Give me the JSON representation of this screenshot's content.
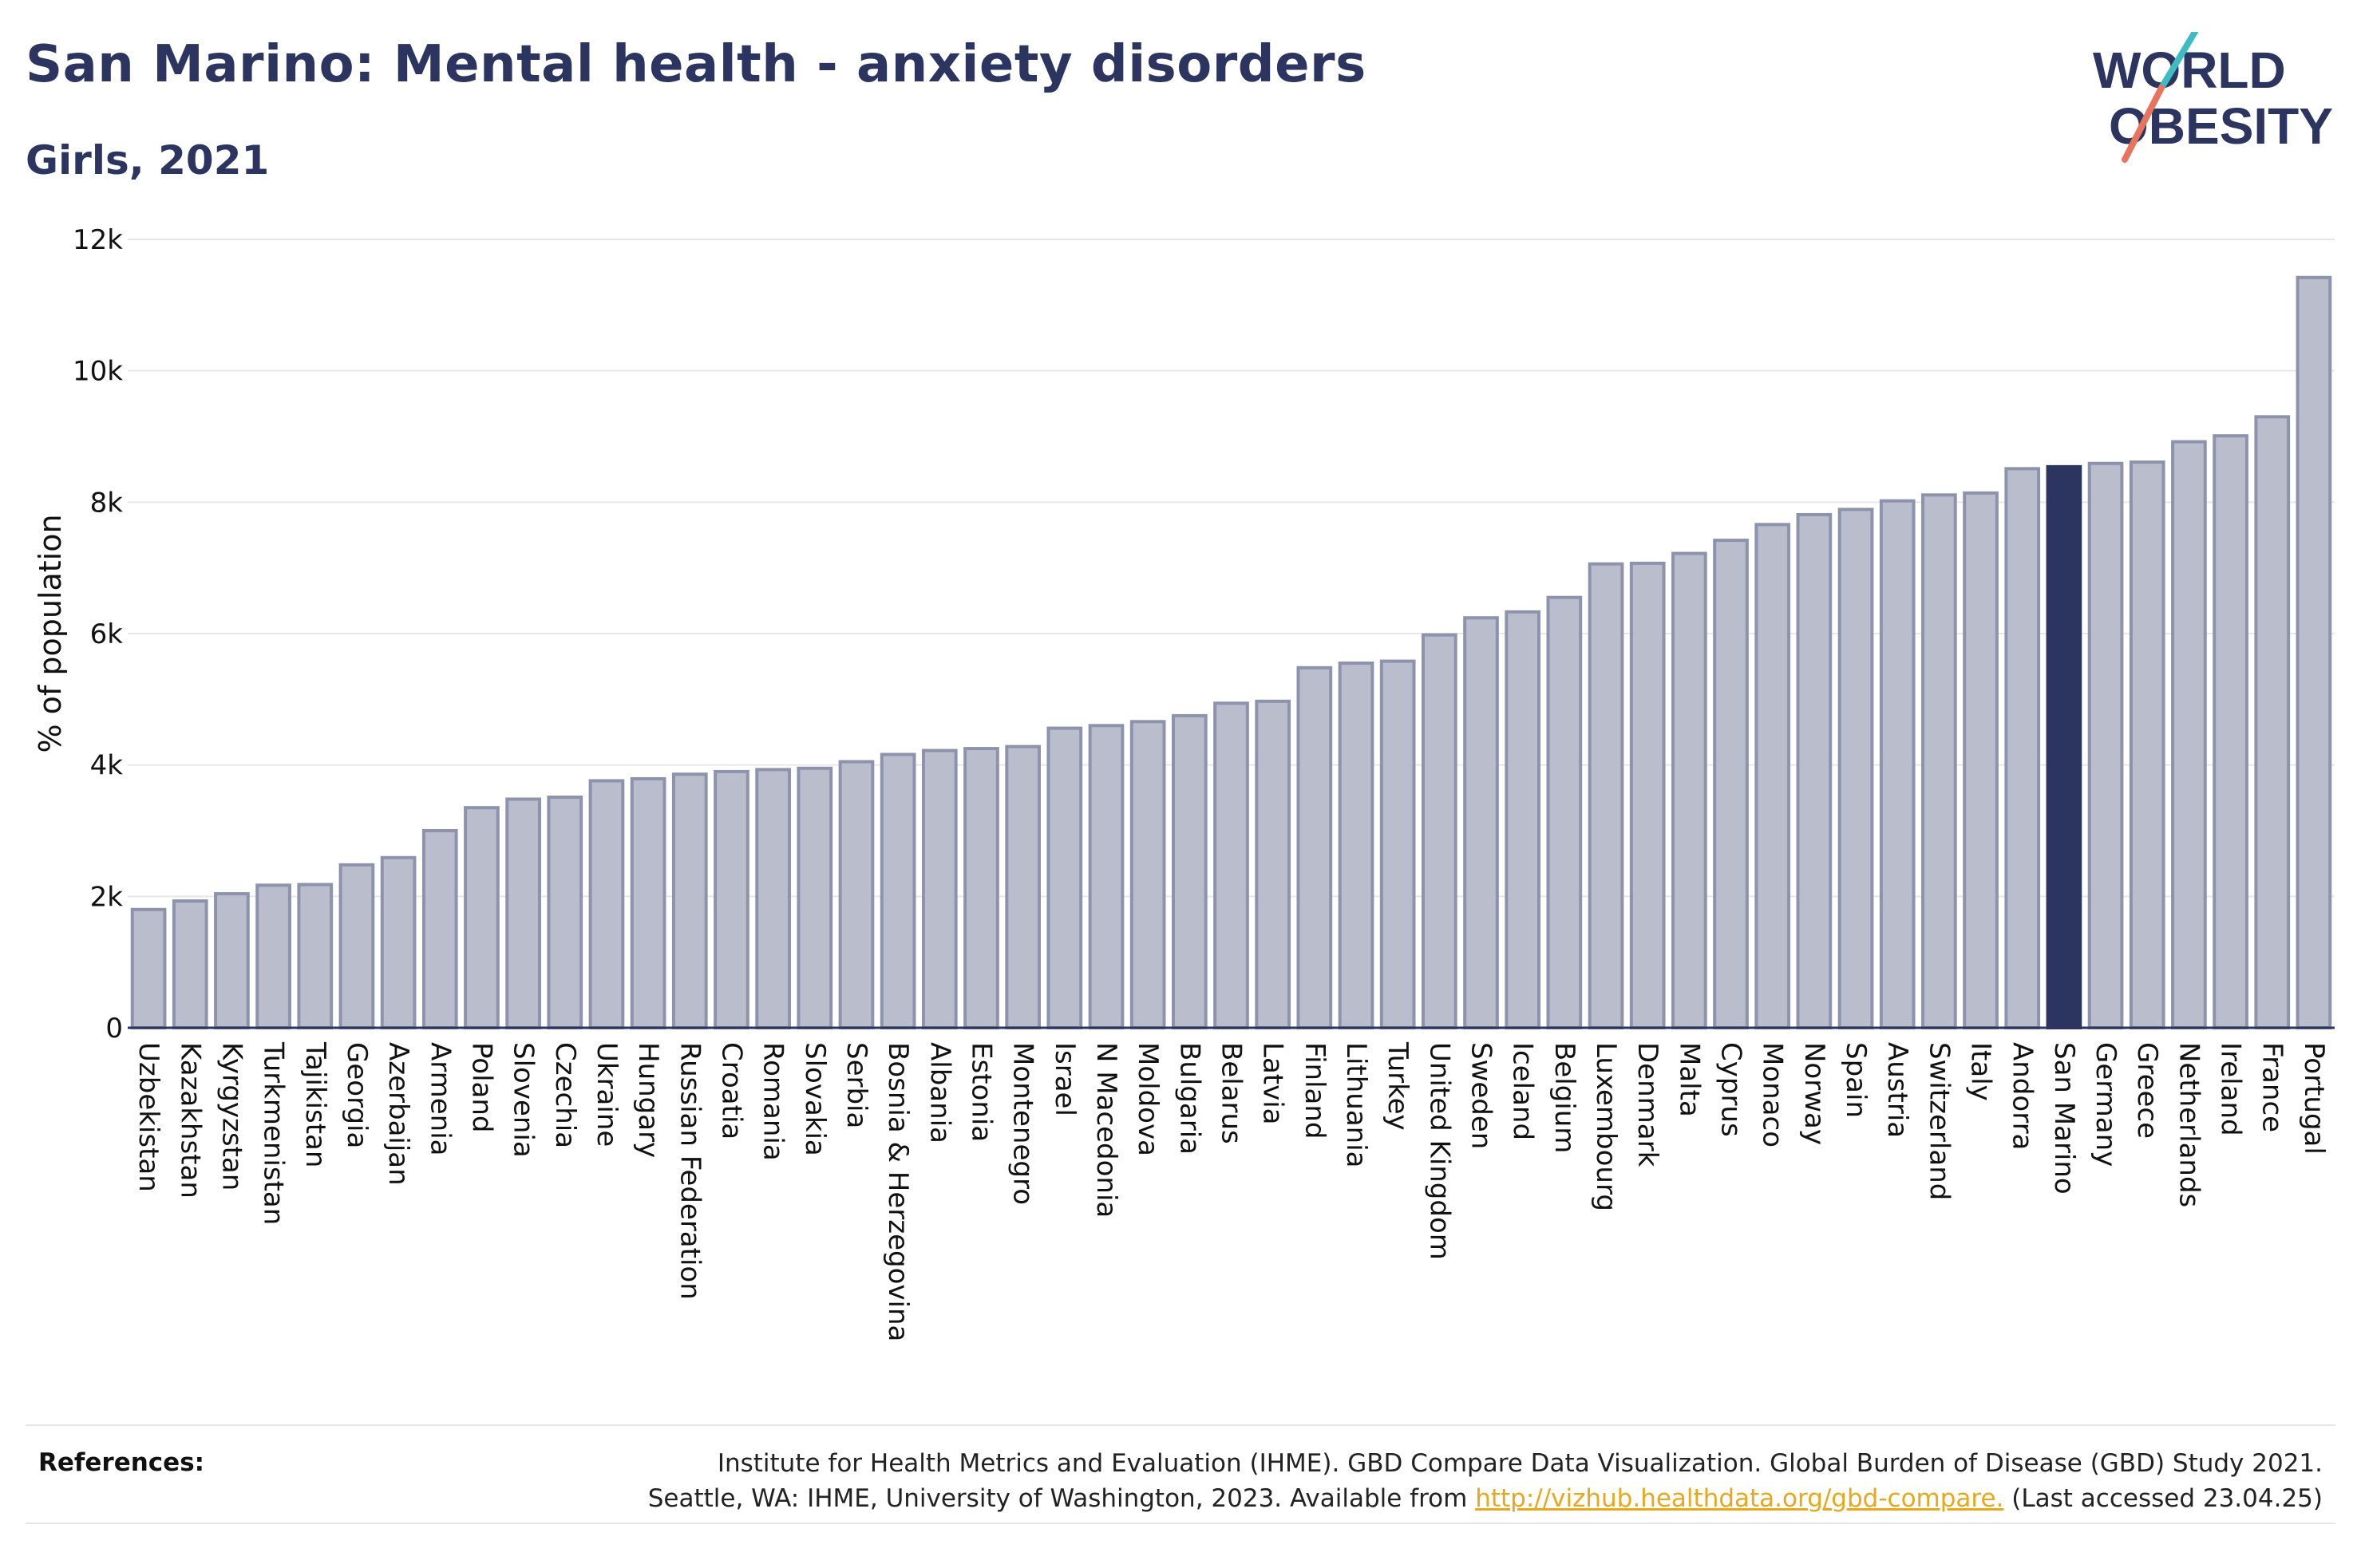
{
  "header": {
    "title": "San Marino: Mental health - anxiety disorders",
    "subtitle": "Girls, 2021"
  },
  "logo": {
    "line1": "WORLD",
    "line2": "OBESITY"
  },
  "colors": {
    "bar": "#b9bdcc",
    "bar_border": "#8d93ad",
    "highlight": "#2b3560",
    "title": "#2b3560",
    "logo_teal": "#3fbcc2",
    "logo_coral": "#e9745e"
  },
  "chart_data": {
    "type": "bar",
    "ylabel": "% of population",
    "ylim": [
      0,
      12000
    ],
    "yticks": [
      0,
      2000,
      4000,
      6000,
      8000,
      10000,
      12000
    ],
    "ytick_labels": [
      "0",
      "2k",
      "4k",
      "6k",
      "8k",
      "10k",
      "12k"
    ],
    "grid": true,
    "highlight": "San Marino",
    "categories": [
      "Uzbekistan",
      "Kazakhstan",
      "Kyrgyzstan",
      "Turkmenistan",
      "Tajikistan",
      "Georgia",
      "Azerbaijan",
      "Armenia",
      "Poland",
      "Slovenia",
      "Czechia",
      "Ukraine",
      "Hungary",
      "Russian Federation",
      "Croatia",
      "Romania",
      "Slovakia",
      "Serbia",
      "Bosnia & Herzegovina",
      "Albania",
      "Estonia",
      "Montenegro",
      "Israel",
      "N Macedonia",
      "Moldova",
      "Bulgaria",
      "Belarus",
      "Latvia",
      "Finland",
      "Lithuania",
      "Turkey",
      "United Kingdom",
      "Sweden",
      "Iceland",
      "Belgium",
      "Luxembourg",
      "Denmark",
      "Malta",
      "Cyprus",
      "Monaco",
      "Norway",
      "Spain",
      "Austria",
      "Switzerland",
      "Italy",
      "Andorra",
      "San Marino",
      "Germany",
      "Greece",
      "Netherlands",
      "Ireland",
      "France",
      "Portugal"
    ],
    "values": [
      1800,
      1930,
      2040,
      2170,
      2180,
      2480,
      2590,
      3000,
      3350,
      3480,
      3510,
      3760,
      3790,
      3860,
      3900,
      3930,
      3950,
      4050,
      4160,
      4220,
      4250,
      4280,
      4560,
      4600,
      4660,
      4750,
      4940,
      4970,
      5480,
      5550,
      5580,
      5980,
      6240,
      6330,
      6550,
      7060,
      7070,
      7220,
      7420,
      7660,
      7810,
      7890,
      8020,
      8110,
      8140,
      8510,
      8540,
      8590,
      8610,
      8920,
      9010,
      9300,
      11420
    ]
  },
  "references": {
    "label": "References:",
    "line1": "Institute for Health Metrics and Evaluation (IHME). GBD Compare Data Visualization. Global Burden of Disease (GBD) Study 2021.",
    "line2_pre": "Seattle, WA: IHME, University of Washington, 2023. Available from ",
    "link": "http://vizhub.healthdata.org/gbd-compare.",
    "line2_post": " (Last accessed 23.04.25)"
  }
}
